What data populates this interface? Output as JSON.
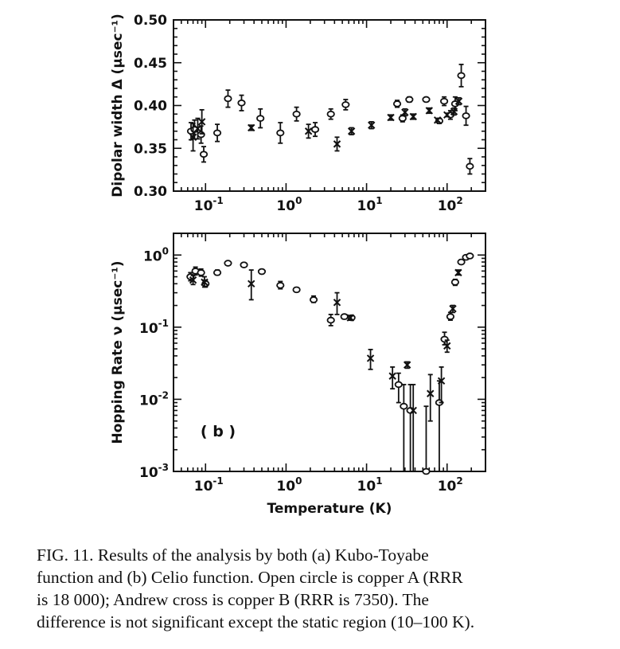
{
  "chart_data": [
    {
      "type": "scatter",
      "panel": "a",
      "ylabel": "Dipolar width Δ (μsec⁻¹)",
      "xlabel": "",
      "xscale": "log",
      "xlim": [
        0.04,
        300
      ],
      "ylim": [
        0.3,
        0.5
      ],
      "xticks": [
        {
          "v": 0.1,
          "base": "10",
          "exp": "-1"
        },
        {
          "v": 1,
          "base": "10",
          "exp": "0"
        },
        {
          "v": 10,
          "base": "10",
          "exp": "1"
        },
        {
          "v": 100,
          "base": "10",
          "exp": "2"
        }
      ],
      "yticks": [
        {
          "v": 0.3,
          "label": "0.30"
        },
        {
          "v": 0.35,
          "label": "0.35"
        },
        {
          "v": 0.4,
          "label": "0.40"
        },
        {
          "v": 0.45,
          "label": "0.45"
        },
        {
          "v": 0.5,
          "label": "0.50"
        }
      ],
      "grid": false,
      "series": [
        {
          "marker": "circle",
          "points": [
            [
              0.066,
              0.37,
              0.01
            ],
            [
              0.073,
              0.372,
              0.011
            ],
            [
              0.088,
              0.366,
              0.01
            ],
            [
              0.095,
              0.343,
              0.009
            ],
            [
              0.14,
              0.368,
              0.01
            ],
            [
              0.19,
              0.408,
              0.01
            ],
            [
              0.28,
              0.403,
              0.009
            ],
            [
              0.48,
              0.385,
              0.011
            ],
            [
              0.85,
              0.368,
              0.012
            ],
            [
              1.35,
              0.39,
              0.008
            ],
            [
              2.3,
              0.372,
              0.008
            ],
            [
              3.6,
              0.39,
              0.006
            ],
            [
              5.5,
              0.401,
              0.006
            ],
            [
              24,
              0.402,
              0.004
            ],
            [
              28,
              0.385,
              0.004
            ],
            [
              34,
              0.407,
              0.003
            ],
            [
              55,
              0.407,
              0.002
            ],
            [
              80,
              0.382,
              0.003
            ],
            [
              92,
              0.405,
              0.005
            ],
            [
              110,
              0.389,
              0.005
            ],
            [
              126,
              0.402,
              0.008
            ],
            [
              150,
              0.435,
              0.013
            ],
            [
              172,
              0.388,
              0.011
            ],
            [
              192,
              0.329,
              0.009
            ]
          ]
        },
        {
          "marker": "cross",
          "points": [
            [
              0.07,
              0.363,
              0.016
            ],
            [
              0.08,
              0.373,
              0.012
            ],
            [
              0.09,
              0.381,
              0.014
            ],
            [
              0.37,
              0.374,
              0.003
            ],
            [
              1.9,
              0.37,
              0.008
            ],
            [
              4.3,
              0.355,
              0.008
            ],
            [
              6.5,
              0.37,
              0.004
            ],
            [
              11.5,
              0.377,
              0.004
            ],
            [
              20,
              0.386,
              0.003
            ],
            [
              30,
              0.392,
              0.004
            ],
            [
              38,
              0.387,
              0.003
            ],
            [
              60,
              0.394,
              0.003
            ],
            [
              76,
              0.383,
              0.002
            ],
            [
              100,
              0.389,
              0.002
            ],
            [
              122,
              0.393,
              0.004
            ],
            [
              140,
              0.405,
              0.004
            ]
          ]
        }
      ]
    },
    {
      "type": "scatter",
      "panel": "b",
      "annotation": "( b )",
      "ylabel": "Hopping Rate ν (μsec⁻¹)",
      "xlabel": "Temperature (K)",
      "xscale": "log",
      "yscale": "log",
      "xlim": [
        0.04,
        300
      ],
      "ylim": [
        0.001,
        2
      ],
      "xticks": [
        {
          "v": 0.1,
          "base": "10",
          "exp": "-1"
        },
        {
          "v": 1,
          "base": "10",
          "exp": "0"
        },
        {
          "v": 10,
          "base": "10",
          "exp": "1"
        },
        {
          "v": 100,
          "base": "10",
          "exp": "2"
        }
      ],
      "yticks": [
        {
          "v": 0.001,
          "base": "10",
          "exp": "-3"
        },
        {
          "v": 0.01,
          "base": "10",
          "exp": "-2"
        },
        {
          "v": 0.1,
          "base": "10",
          "exp": "-1"
        },
        {
          "v": 1,
          "base": "10",
          "exp": "0"
        }
      ],
      "grid": false,
      "series": [
        {
          "marker": "circle",
          "points": [
            [
              0.065,
              0.5,
              0.44,
              0.57
            ],
            [
              0.075,
              0.6,
              0.53,
              0.68
            ],
            [
              0.088,
              0.57,
              0.51,
              0.64
            ],
            [
              0.1,
              0.4,
              0.36,
              0.45
            ],
            [
              0.14,
              0.57,
              0.53,
              0.62
            ],
            [
              0.19,
              0.77,
              0.73,
              0.81
            ],
            [
              0.3,
              0.73,
              0.69,
              0.77
            ],
            [
              0.5,
              0.59,
              0.55,
              0.63
            ],
            [
              0.85,
              0.38,
              0.34,
              0.43
            ],
            [
              1.35,
              0.33,
              0.31,
              0.35
            ],
            [
              2.2,
              0.24,
              0.22,
              0.27
            ],
            [
              3.6,
              0.125,
              0.105,
              0.15
            ],
            [
              5.3,
              0.14,
              0.13,
              0.15
            ],
            [
              6.5,
              0.135,
              0.125,
              0.145
            ],
            [
              25,
              0.016,
              0.009,
              0.023
            ],
            [
              29,
              0.008,
              0.0001,
              0.016
            ],
            [
              35,
              0.007,
              0.0001,
              0.016
            ],
            [
              55,
              0.001,
              0.0001,
              0.008
            ],
            [
              80,
              0.009,
              0.0001,
              0.018
            ],
            [
              93,
              0.068,
              0.057,
              0.085
            ],
            [
              110,
              0.14,
              0.125,
              0.16
            ],
            [
              126,
              0.42,
              0.38,
              0.46
            ],
            [
              150,
              0.8,
              0.75,
              0.86
            ],
            [
              172,
              0.93,
              0.88,
              0.98
            ],
            [
              192,
              0.97,
              0.92,
              1.02
            ]
          ]
        },
        {
          "marker": "cross",
          "points": [
            [
              0.07,
              0.45,
              0.39,
              0.52
            ],
            [
              0.097,
              0.42,
              0.36,
              0.5
            ],
            [
              0.37,
              0.4,
              0.24,
              0.62
            ],
            [
              4.3,
              0.22,
              0.15,
              0.3
            ],
            [
              6.3,
              0.135,
              0.125,
              0.145
            ],
            [
              11.2,
              0.037,
              0.026,
              0.049
            ],
            [
              21,
              0.021,
              0.014,
              0.028
            ],
            [
              32,
              0.03,
              0.027,
              0.033
            ],
            [
              38,
              0.007,
              0.0001,
              0.016
            ],
            [
              62,
              0.012,
              0.005,
              0.022
            ],
            [
              85,
              0.018,
              0.009,
              0.028
            ],
            [
              100,
              0.055,
              0.045,
              0.066
            ],
            [
              118,
              0.18,
              0.16,
              0.2
            ],
            [
              138,
              0.57,
              0.53,
              0.62
            ]
          ]
        }
      ]
    }
  ],
  "caption": {
    "line1": "FIG. 11. Results of the analysis by both (a) Kubo-Toyabe",
    "line2": "function and (b) Celio function. Open circle is copper A (RRR",
    "line3": "is 18 000); Andrew cross is copper B (RRR is 7350). The",
    "line4": "difference is not significant except the static region (10–100 K)."
  }
}
